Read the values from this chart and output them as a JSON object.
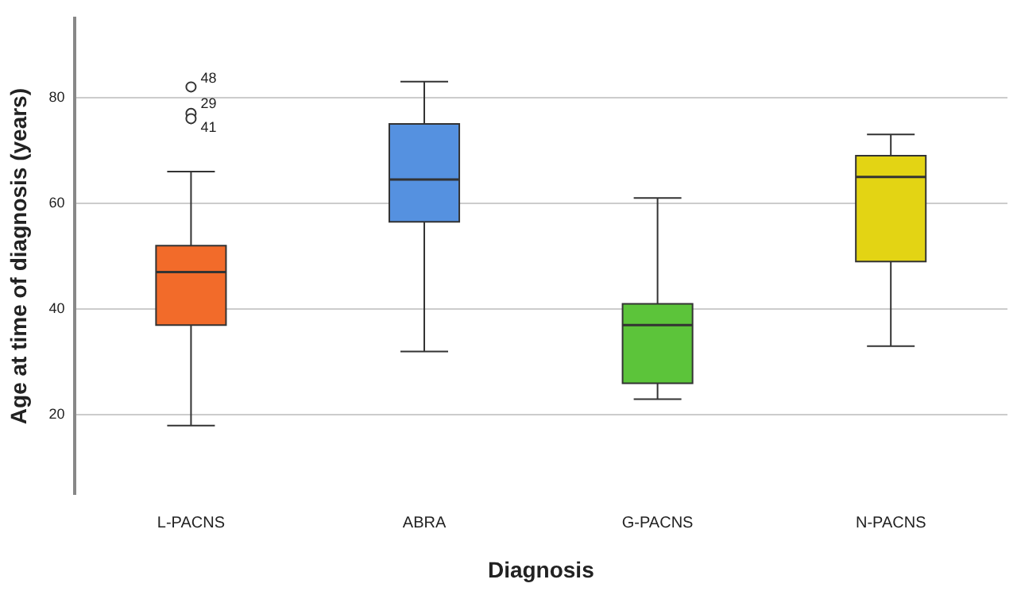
{
  "chart_data": {
    "type": "box",
    "xlabel": "Diagnosis",
    "ylabel": "Age at time of diagnosis (years)",
    "categories": [
      "L-PACNS",
      "ABRA",
      "G-PACNS",
      "N-PACNS"
    ],
    "colors": [
      "#f26b2a",
      "#5591e0",
      "#5cc43a",
      "#e3d414"
    ],
    "boxes": [
      {
        "low": 18,
        "q1": 37,
        "median": 47,
        "q3": 52,
        "high": 66,
        "outliers": [
          82,
          77,
          76
        ]
      },
      {
        "low": 32,
        "q1": 56.5,
        "median": 64.5,
        "q3": 75,
        "high": 83
      },
      {
        "low": 23,
        "q1": 26,
        "median": 37,
        "q3": 41,
        "high": 61
      },
      {
        "low": 33,
        "q1": 49,
        "median": 65,
        "q3": 69,
        "high": 73
      }
    ],
    "ylim": [
      5,
      95
    ],
    "yticks": [
      20,
      40,
      60,
      80
    ],
    "grid": "y",
    "annotations": [
      "48",
      "29",
      "41"
    ]
  }
}
